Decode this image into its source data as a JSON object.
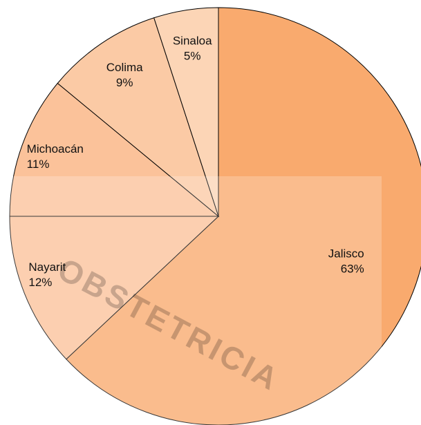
{
  "chart_data": {
    "type": "pie",
    "categories": [
      "Jalisco",
      "Nayarit",
      "Michoacán",
      "Colima",
      "Sinaloa"
    ],
    "values": [
      63,
      12,
      11,
      9,
      5
    ],
    "value_labels": [
      "63%",
      "12%",
      "11%",
      "9%",
      "5%"
    ],
    "colors": [
      "#f9aa6e",
      "#fbc29a",
      "#fbc29a",
      "#fbcaa5",
      "#fcd5b6"
    ],
    "watermark": "OBSTETRICIA"
  }
}
